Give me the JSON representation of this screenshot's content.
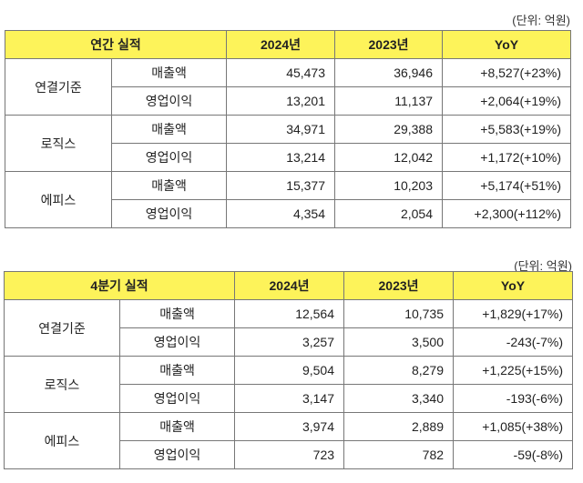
{
  "tables": [
    {
      "unit": "(단위: 억원)",
      "headers": [
        "연간 실적",
        "2024년",
        "2023년",
        "YoY"
      ],
      "groups": [
        {
          "name": "연결기준",
          "rows": [
            {
              "item": "매출액",
              "y2024": "45,473",
              "y2023": "36,946",
              "yoy": "+8,527(+23%)"
            },
            {
              "item": "영업이익",
              "y2024": "13,201",
              "y2023": "11,137",
              "yoy": "+2,064(+19%)"
            }
          ]
        },
        {
          "name": "로직스",
          "rows": [
            {
              "item": "매출액",
              "y2024": "34,971",
              "y2023": "29,388",
              "yoy": "+5,583(+19%)"
            },
            {
              "item": "영업이익",
              "y2024": "13,214",
              "y2023": "12,042",
              "yoy": "+1,172(+10%)"
            }
          ]
        },
        {
          "name": "에피스",
          "rows": [
            {
              "item": "매출액",
              "y2024": "15,377",
              "y2023": "10,203",
              "yoy": "+5,174(+51%)"
            },
            {
              "item": "영업이익",
              "y2024": "4,354",
              "y2023": "2,054",
              "yoy": "+2,300(+112%)"
            }
          ]
        }
      ]
    },
    {
      "unit": "(단위: 억원)",
      "headers": [
        "4분기 실적",
        "2024년",
        "2023년",
        "YoY"
      ],
      "groups": [
        {
          "name": "연결기준",
          "rows": [
            {
              "item": "매출액",
              "y2024": "12,564",
              "y2023": "10,735",
              "yoy": "+1,829(+17%)"
            },
            {
              "item": "영업이익",
              "y2024": "3,257",
              "y2023": "3,500",
              "yoy": "-243(-7%)"
            }
          ]
        },
        {
          "name": "로직스",
          "rows": [
            {
              "item": "매출액",
              "y2024": "9,504",
              "y2023": "8,279",
              "yoy": "+1,225(+15%)"
            },
            {
              "item": "영업이익",
              "y2024": "3,147",
              "y2023": "3,340",
              "yoy": "-193(-6%)"
            }
          ]
        },
        {
          "name": "에피스",
          "rows": [
            {
              "item": "매출액",
              "y2024": "3,974",
              "y2023": "2,889",
              "yoy": "+1,085(+38%)"
            },
            {
              "item": "영업이익",
              "y2024": "723",
              "y2023": "782",
              "yoy": "-59(-8%)"
            }
          ]
        }
      ]
    }
  ]
}
